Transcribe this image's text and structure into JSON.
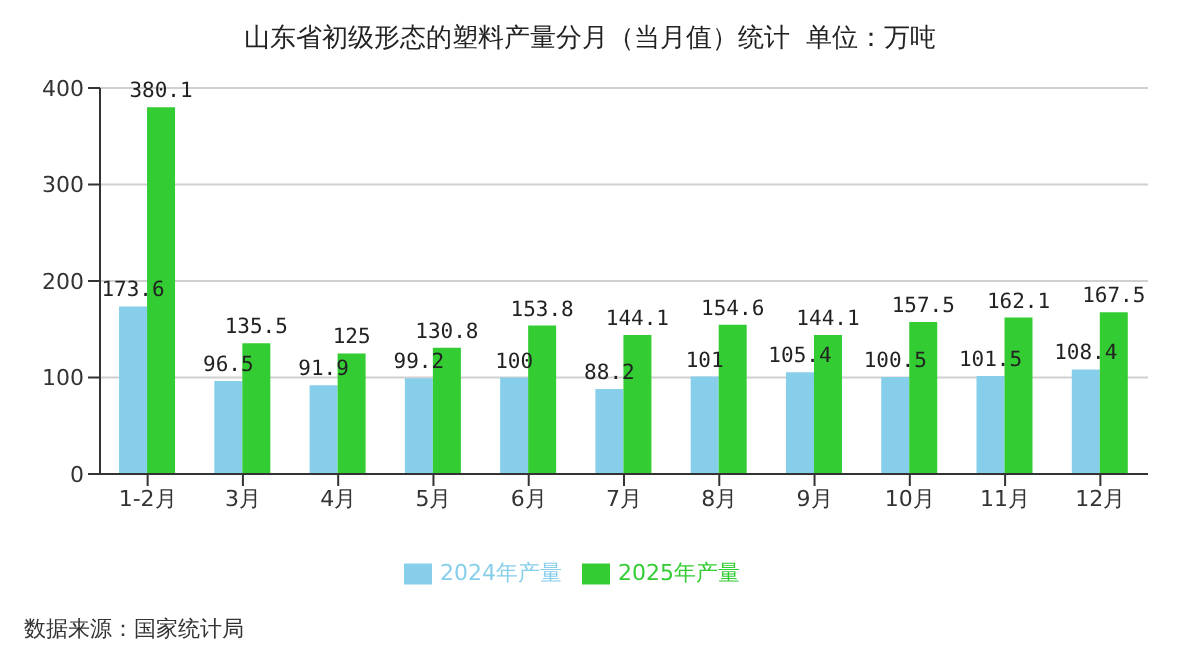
{
  "chart_data": {
    "type": "bar",
    "title": "山东省初级形态的塑料产量分月（当月值）统计  单位：万吨",
    "categories": [
      "1-2月",
      "3月",
      "4月",
      "5月",
      "6月",
      "7月",
      "8月",
      "9月",
      "10月",
      "11月",
      "12月"
    ],
    "series": [
      {
        "name": "2024年产量",
        "color": "#87ceeb",
        "values": [
          173.6,
          96.5,
          91.9,
          99.2,
          100,
          88.2,
          101,
          105.4,
          100.5,
          101.5,
          108.4
        ]
      },
      {
        "name": "2025年产量",
        "color": "#33cc33",
        "values": [
          380.1,
          135.5,
          125,
          130.8,
          153.8,
          144.1,
          154.6,
          144.1,
          157.5,
          162.1,
          167.5
        ]
      }
    ],
    "ylim": [
      0,
      400
    ],
    "yticks": [
      0,
      100,
      200,
      300,
      400
    ],
    "grid": "y",
    "legend": "bottom",
    "data_labels": true,
    "annotations": [
      "数据来源：国家统计局"
    ]
  }
}
